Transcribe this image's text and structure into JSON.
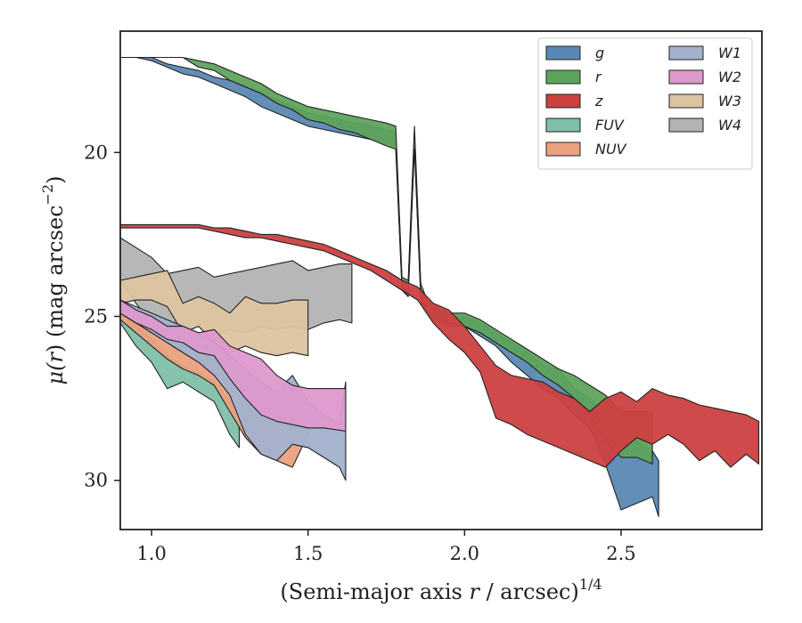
{
  "chart_data": {
    "type": "area",
    "title": "",
    "xlabel": "(Semi-major axis r / arcsec)",
    "xlabel_parts": {
      "pre": "(Semi-major axis ",
      "var": "r",
      "post": " / arcsec)",
      "sup": "1/4"
    },
    "ylabel": "μ(r) (mag arcsec−2)",
    "ylabel_parts": {
      "mu": "μ(",
      "var": "r",
      "mid": ") (mag arcsec",
      "sup": "−2",
      "end": ")"
    },
    "xlim": [
      0.9,
      2.95
    ],
    "ylim": [
      31.5,
      16.3
    ],
    "y_inverted": true,
    "xticks": [
      1.0,
      1.5,
      2.0,
      2.5
    ],
    "xtick_labels": [
      "1.0",
      "1.5",
      "2.0",
      "2.5"
    ],
    "yticks": [
      20,
      25,
      30
    ],
    "ytick_labels": [
      "20",
      "25",
      "30"
    ],
    "grid": false,
    "legend_position": "top-right",
    "legend_columns": 2,
    "series": [
      {
        "name": "W4",
        "color": "#b3b3b3",
        "x": [
          0.9,
          0.95,
          1.0,
          1.05,
          1.1,
          1.15,
          1.2,
          1.25,
          1.3,
          1.35,
          1.4,
          1.45,
          1.5,
          1.55,
          1.6,
          1.64
        ],
        "lo": [
          22.6,
          22.9,
          23.2,
          23.7,
          23.6,
          23.5,
          23.8,
          23.7,
          23.6,
          23.5,
          23.4,
          23.3,
          23.6,
          23.5,
          23.4,
          23.4
        ],
        "hi": [
          23.9,
          24.6,
          25.2,
          25.7,
          25.5,
          25.3,
          25.6,
          25.4,
          25.5,
          25.3,
          25.4,
          25.3,
          25.4,
          25.2,
          25.1,
          25.2
        ]
      },
      {
        "name": "W3",
        "color": "#ddc3a0",
        "x": [
          0.9,
          0.95,
          1.0,
          1.05,
          1.1,
          1.15,
          1.2,
          1.25,
          1.3,
          1.35,
          1.4,
          1.45,
          1.5
        ],
        "lo": [
          23.9,
          23.8,
          23.7,
          23.6,
          24.6,
          24.4,
          24.6,
          24.9,
          24.4,
          24.6,
          24.6,
          24.5,
          24.5
        ],
        "hi": [
          24.6,
          24.5,
          24.5,
          24.7,
          25.5,
          25.3,
          25.8,
          26.1,
          25.9,
          26.1,
          26.2,
          26.1,
          26.2
        ]
      },
      {
        "name": "FUV",
        "color": "#7fbfa8",
        "x": [
          0.9,
          0.95,
          1.0,
          1.05,
          1.1,
          1.15,
          1.2,
          1.25,
          1.28
        ],
        "lo": [
          24.8,
          25.3,
          25.7,
          26.2,
          26.5,
          26.7,
          27.0,
          27.6,
          28.4
        ],
        "hi": [
          25.2,
          25.9,
          26.4,
          27.2,
          27.0,
          27.3,
          27.6,
          28.6,
          29.0
        ]
      },
      {
        "name": "NUV",
        "color": "#e9a17e",
        "x": [
          0.9,
          0.95,
          1.0,
          1.05,
          1.1,
          1.15,
          1.2,
          1.25,
          1.3,
          1.35,
          1.4,
          1.45,
          1.5
        ],
        "lo": [
          24.7,
          25.0,
          25.3,
          25.6,
          25.9,
          26.1,
          26.3,
          26.6,
          27.0,
          27.5,
          27.9,
          28.4,
          28.2
        ],
        "hi": [
          25.1,
          25.5,
          25.9,
          26.3,
          26.6,
          26.8,
          27.1,
          27.9,
          28.7,
          29.2,
          29.4,
          29.6,
          28.6
        ]
      },
      {
        "name": "W1",
        "color": "#a3b1cd",
        "x": [
          0.9,
          0.95,
          1.0,
          1.05,
          1.1,
          1.15,
          1.2,
          1.25,
          1.3,
          1.35,
          1.4,
          1.45,
          1.5,
          1.55,
          1.6,
          1.62
        ],
        "lo": [
          24.5,
          24.7,
          24.9,
          25.1,
          25.3,
          25.5,
          25.8,
          26.2,
          26.6,
          27.0,
          27.3,
          26.8,
          27.6,
          28.0,
          28.3,
          27.0
        ],
        "hi": [
          24.9,
          25.2,
          25.5,
          25.8,
          26.1,
          26.4,
          26.8,
          27.4,
          28.6,
          29.2,
          29.4,
          28.9,
          29.0,
          29.3,
          29.6,
          30.0
        ]
      },
      {
        "name": "W2",
        "color": "#dd99cc",
        "x": [
          0.9,
          0.95,
          1.0,
          1.05,
          1.1,
          1.15,
          1.2,
          1.25,
          1.3,
          1.35,
          1.4,
          1.45,
          1.5,
          1.55,
          1.62
        ],
        "lo": [
          24.5,
          24.8,
          25.0,
          25.3,
          25.3,
          25.5,
          25.4,
          25.9,
          26.1,
          26.3,
          26.8,
          27.1,
          27.2,
          27.2,
          27.2
        ],
        "hi": [
          24.9,
          25.2,
          25.4,
          25.7,
          25.8,
          26.1,
          26.2,
          26.9,
          27.5,
          28.0,
          28.2,
          28.3,
          28.4,
          28.4,
          28.5
        ]
      },
      {
        "name": "g",
        "color": "#5a88b4",
        "x": [
          0.9,
          0.95,
          1.0,
          1.05,
          1.1,
          1.15,
          1.2,
          1.25,
          1.3,
          1.35,
          1.4,
          1.45,
          1.5,
          1.55,
          1.6,
          1.65,
          1.7,
          1.75,
          1.78,
          1.8,
          1.82,
          1.84,
          1.86,
          1.88,
          1.9,
          1.95,
          2.0,
          2.05,
          2.1,
          2.15,
          2.2,
          2.25,
          2.3,
          2.35,
          2.4,
          2.45,
          2.5,
          2.55,
          2.6,
          2.62
        ],
        "lo": [
          17.1,
          17.1,
          17.1,
          17.3,
          17.4,
          17.5,
          17.7,
          17.8,
          18.0,
          18.2,
          18.4,
          18.6,
          18.8,
          18.9,
          19.0,
          19.1,
          19.2,
          19.3,
          19.4,
          23.9,
          24.0,
          19.4,
          24.1,
          24.6,
          24.8,
          25.0,
          25.0,
          25.2,
          25.5,
          25.8,
          26.1,
          26.5,
          26.6,
          27.2,
          27.5,
          28.0,
          28.4,
          28.8,
          29.1,
          29.4
        ],
        "hi": [
          17.1,
          17.1,
          17.2,
          17.4,
          17.6,
          17.7,
          17.9,
          18.1,
          18.3,
          18.6,
          18.8,
          19.0,
          19.2,
          19.3,
          19.4,
          19.5,
          19.6,
          19.7,
          19.8,
          24.2,
          24.4,
          19.8,
          24.5,
          24.9,
          25.1,
          25.3,
          25.3,
          25.6,
          25.9,
          26.4,
          26.8,
          27.2,
          27.5,
          28.0,
          28.4,
          29.5,
          30.9,
          30.7,
          30.5,
          31.1
        ]
      },
      {
        "name": "r",
        "color": "#5ea35c",
        "x": [
          0.9,
          0.95,
          1.0,
          1.05,
          1.1,
          1.15,
          1.2,
          1.25,
          1.3,
          1.35,
          1.4,
          1.45,
          1.5,
          1.55,
          1.6,
          1.65,
          1.7,
          1.75,
          1.78,
          1.8,
          1.82,
          1.84,
          1.86,
          1.88,
          1.9,
          1.95,
          2.0,
          2.05,
          2.1,
          2.15,
          2.2,
          2.25,
          2.3,
          2.35,
          2.4,
          2.45,
          2.5,
          2.55,
          2.6
        ],
        "lo": [
          17.1,
          17.1,
          17.1,
          17.1,
          17.1,
          17.2,
          17.3,
          17.5,
          17.7,
          17.9,
          18.2,
          18.4,
          18.6,
          18.7,
          18.8,
          18.9,
          19.0,
          19.1,
          19.2,
          23.8,
          23.9,
          19.2,
          24.0,
          24.5,
          24.7,
          24.9,
          24.9,
          25.1,
          25.4,
          25.7,
          26.0,
          26.3,
          26.6,
          26.8,
          27.1,
          27.4,
          27.9,
          27.9,
          27.9
        ],
        "hi": [
          17.1,
          17.1,
          17.1,
          17.1,
          17.1,
          17.4,
          17.5,
          17.8,
          18.0,
          18.2,
          18.5,
          18.7,
          19.0,
          19.1,
          19.3,
          19.4,
          19.6,
          19.8,
          19.9,
          24.1,
          24.3,
          19.9,
          24.4,
          24.8,
          25.0,
          25.2,
          25.3,
          25.5,
          25.8,
          26.1,
          26.4,
          26.8,
          27.1,
          27.5,
          28.0,
          28.8,
          29.3,
          29.3,
          29.5
        ]
      },
      {
        "name": "z",
        "color": "#cc4040",
        "x": [
          0.9,
          0.95,
          1.0,
          1.05,
          1.1,
          1.15,
          1.2,
          1.25,
          1.3,
          1.35,
          1.4,
          1.45,
          1.5,
          1.55,
          1.6,
          1.65,
          1.7,
          1.75,
          1.8,
          1.85,
          1.9,
          1.95,
          2.0,
          2.05,
          2.1,
          2.15,
          2.2,
          2.25,
          2.3,
          2.35,
          2.4,
          2.45,
          2.5,
          2.55,
          2.6,
          2.65,
          2.7,
          2.75,
          2.8,
          2.85,
          2.9,
          2.94
        ],
        "lo": [
          22.2,
          22.2,
          22.2,
          22.2,
          22.2,
          22.2,
          22.3,
          22.3,
          22.4,
          22.5,
          22.5,
          22.6,
          22.7,
          22.8,
          23.0,
          23.2,
          23.4,
          23.6,
          23.9,
          24.1,
          24.6,
          24.8,
          25.3,
          25.9,
          26.5,
          26.8,
          26.9,
          27.0,
          27.3,
          27.5,
          27.9,
          27.5,
          27.3,
          27.6,
          27.2,
          27.4,
          27.5,
          27.7,
          27.8,
          27.9,
          28.0,
          28.2
        ],
        "hi": [
          22.3,
          22.3,
          22.3,
          22.3,
          22.3,
          22.3,
          22.4,
          22.5,
          22.6,
          22.6,
          22.7,
          22.8,
          22.9,
          23.0,
          23.2,
          23.4,
          23.6,
          23.9,
          24.2,
          24.5,
          25.2,
          25.7,
          26.1,
          26.7,
          28.1,
          28.3,
          28.6,
          28.8,
          29.0,
          29.2,
          29.4,
          29.6,
          29.1,
          28.7,
          28.9,
          28.6,
          28.9,
          29.4,
          29.1,
          29.6,
          29.2,
          29.5
        ]
      }
    ],
    "legend_order": [
      "g",
      "r",
      "z",
      "FUV",
      "NUV",
      "W1",
      "W2",
      "W3",
      "W4"
    ]
  }
}
